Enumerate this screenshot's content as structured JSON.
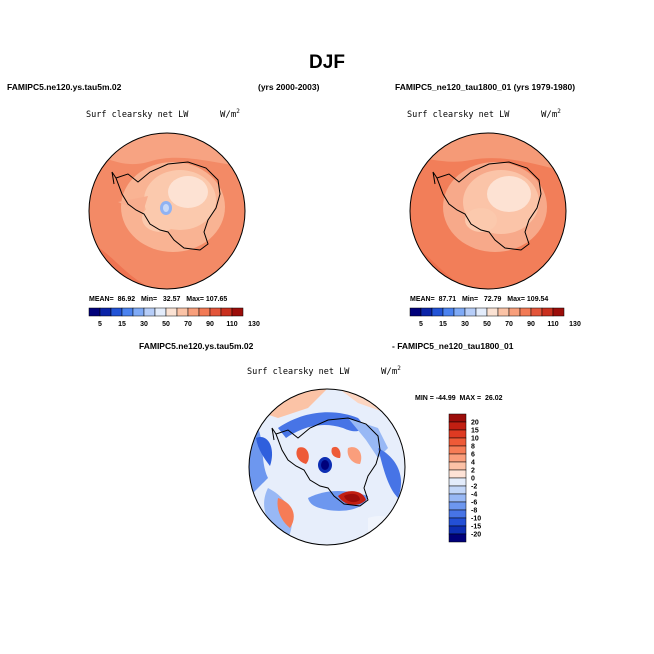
{
  "figure": {
    "title": "DJF"
  },
  "panels": {
    "left": {
      "case_label": "FAMIPC5.ne120.ys.tau5m.02",
      "years_label": "(yrs 2000-2003)",
      "variable": "Surf clearsky net LW",
      "units": "W/m",
      "units_exp": "2",
      "stats": "MEAN=  86.92   Min=   32.57   Max= 107.65"
    },
    "right": {
      "case_label": "FAMIPC5_ne120_tau1800_01 (yrs 1979-1980)",
      "variable": "Surf clearsky net LW",
      "units": "W/m",
      "units_exp": "2",
      "stats": "MEAN=  87.71   Min=   72.79   Max= 109.54"
    },
    "diff": {
      "case_a": "FAMIPC5.ne120.ys.tau5m.02",
      "case_b": "- FAMIPC5_ne120_tau1800_01",
      "variable": "Surf clearsky net LW",
      "units": "W/m",
      "units_exp": "2",
      "stats": "MIN = -44.99  MAX =  26.02"
    }
  },
  "colorbar_main": {
    "labels": [
      "5",
      "15",
      "30",
      "50",
      "70",
      "90",
      "110",
      "130"
    ],
    "colors": [
      "#00007a",
      "#0b24a8",
      "#2253d6",
      "#4b82ef",
      "#7faaf6",
      "#b6cdf8",
      "#e3ecfb",
      "#fbe2d3",
      "#fbc3a6",
      "#f89f7b",
      "#f27a55",
      "#e3553a",
      "#c9301e",
      "#9c0d0a"
    ]
  },
  "colorbar_diff": {
    "labels": [
      "20",
      "15",
      "10",
      "8",
      "6",
      "4",
      "2",
      "0",
      "-2",
      "-4",
      "-6",
      "-8",
      "-10",
      "-15",
      "-20"
    ],
    "colors": [
      "#9c0d0a",
      "#c21f12",
      "#de3a22",
      "#ee5a37",
      "#f67c56",
      "#fa9e7c",
      "#fcc1a6",
      "#fde2d6",
      "#e3ecfb",
      "#c2d6f8",
      "#98b8f5",
      "#6d97ef",
      "#4774e6",
      "#2350d6",
      "#0d2eb3",
      "#00007a"
    ]
  },
  "colors": {
    "background": "#ffffff",
    "warm_base": "#f38a66",
    "warm_light": "#fbc0a2",
    "warm_pale": "#fde2d3",
    "blue_anomaly": "#2f5fdd"
  }
}
